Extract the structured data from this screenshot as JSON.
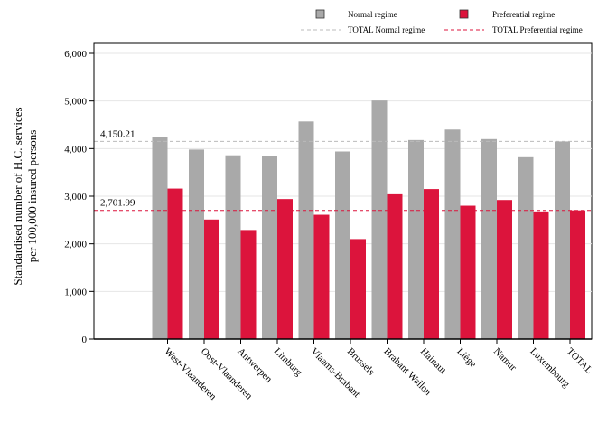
{
  "chart_data": {
    "type": "bar",
    "ylabel_lines": [
      "Standardised number of H.C. services",
      "per 100,000 insured persons"
    ],
    "xlabel": "",
    "ylim": [
      0,
      6000
    ],
    "yticks": [
      0,
      1000,
      2000,
      3000,
      4000,
      5000,
      6000
    ],
    "ytick_labels": [
      "0",
      "1,000",
      "2,000",
      "3,000",
      "4,000",
      "5,000",
      "6,000"
    ],
    "grid": true,
    "legend_position": "top-right",
    "categories": [
      "West-Vlaanderen",
      "Oost-Vlaanderen",
      "Antwerpen",
      "Limburg",
      "Vlaams-Brabant",
      "Brussels",
      "Brabant Wallon",
      "Hainaut",
      "Liège",
      "Namur",
      "Luxembourg",
      "TOTAL"
    ],
    "series": [
      {
        "name": "Normal regime",
        "color": "#a9a9a9",
        "values": [
          4240,
          3980,
          3860,
          3840,
          4570,
          3940,
          5010,
          4180,
          4400,
          4200,
          3820,
          4150.21
        ]
      },
      {
        "name": "Preferential regime",
        "color": "#dc143c",
        "values": [
          3160,
          2510,
          2290,
          2940,
          2610,
          2100,
          3040,
          3150,
          2800,
          2920,
          2680,
          2701.99
        ]
      }
    ],
    "reference_lines": [
      {
        "name": "TOTAL Normal regime",
        "value": 4150.21,
        "label": "4,150.21",
        "color": "#bbbbbb"
      },
      {
        "name": "TOTAL Preferential regime",
        "value": 2701.99,
        "label": "2,701.99",
        "color": "#dc143c"
      }
    ]
  }
}
